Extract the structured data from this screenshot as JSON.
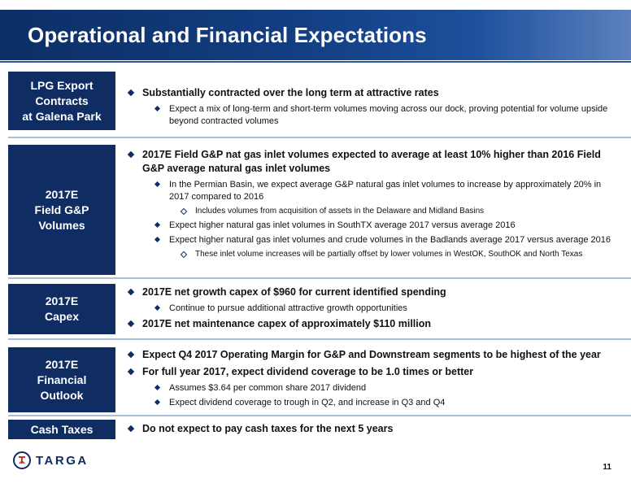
{
  "title": "Operational and Financial Expectations",
  "sections": [
    {
      "label": [
        "LPG Export",
        "Contracts",
        "at Galena Park"
      ],
      "items": [
        {
          "text": "Substantially contracted over the long term at attractive rates",
          "sub": [
            {
              "text": "Expect a mix of long-term and short-term volumes moving across our dock, proving potential for volume upside beyond contracted volumes",
              "sub": []
            }
          ]
        }
      ]
    },
    {
      "label": [
        "2017E",
        "Field G&P",
        "Volumes"
      ],
      "items": [
        {
          "text": "2017E Field G&P nat gas inlet volumes expected to average at least 10% higher than 2016 Field G&P average natural gas inlet volumes",
          "sub": [
            {
              "text": "In the Permian Basin, we expect average G&P natural gas inlet volumes to increase by approximately 20% in 2017 compared to 2016",
              "sub": [
                "Includes volumes from acquisition of assets in the Delaware and Midland Basins"
              ]
            },
            {
              "text": "Expect higher natural gas inlet volumes in SouthTX average 2017 versus average 2016",
              "sub": []
            },
            {
              "text": "Expect higher natural gas inlet volumes and crude volumes in the Badlands average 2017 versus average 2016",
              "sub": [
                "These inlet volume increases will be partially offset by lower volumes in WestOK, SouthOK and North Texas"
              ]
            }
          ]
        }
      ]
    },
    {
      "label": [
        "2017E",
        "Capex"
      ],
      "items": [
        {
          "text": "2017E net growth capex of $960 for current identified spending",
          "sub": [
            {
              "text": "Continue to pursue additional attractive growth opportunities",
              "sub": []
            }
          ]
        },
        {
          "text": "2017E net maintenance capex of approximately $110 million",
          "sub": []
        }
      ]
    },
    {
      "label": [
        "2017E",
        "Financial",
        "Outlook"
      ],
      "items": [
        {
          "text": "Expect Q4 2017 Operating Margin for G&P and Downstream segments to be highest of the year",
          "sub": []
        },
        {
          "text": "For full year 2017, expect dividend coverage to be 1.0 times or better",
          "sub": [
            {
              "text": "Assumes $3.64 per common share 2017 dividend",
              "sub": []
            },
            {
              "text": "Expect dividend coverage to trough in Q2, and increase in Q3 and Q4",
              "sub": []
            }
          ]
        }
      ]
    },
    {
      "label": [
        "Cash Taxes"
      ],
      "items": [
        {
          "text": "Do not expect to pay cash taxes for the next 5 years",
          "sub": []
        }
      ]
    }
  ],
  "logo_text": "TARGA",
  "page_number": "11",
  "colors": {
    "navy": "#0f2c63",
    "header_end": "#5b80bd"
  }
}
